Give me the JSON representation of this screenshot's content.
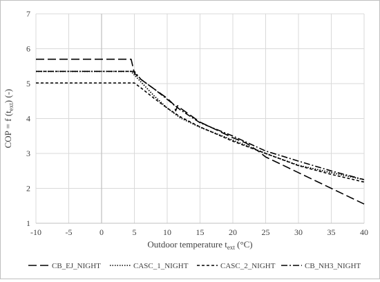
{
  "chart_data": {
    "type": "line",
    "title": "",
    "xlabel": "Outdoor temperature t",
    "xlabel_sub": "ext",
    "xlabel_unit": " (°C)",
    "ylabel": "COP = f (t",
    "ylabel_sub": "ext",
    "ylabel_unit": ") (-)",
    "xlim": [
      -10,
      40
    ],
    "ylim": [
      1,
      7
    ],
    "x_ticks": [
      -10,
      -5,
      0,
      5,
      10,
      15,
      20,
      25,
      30,
      35,
      40
    ],
    "y_ticks": [
      1,
      2,
      3,
      4,
      5,
      6,
      7
    ],
    "grid": true,
    "legend_position": "bottom",
    "series": [
      {
        "name": "CB_EJ_NIGHT",
        "color": "#000000",
        "dash": "long-dash",
        "points": [
          [
            -10,
            5.7
          ],
          [
            4,
            5.7
          ],
          [
            4.5,
            5.7
          ],
          [
            5,
            5.3
          ],
          [
            6,
            5.12
          ],
          [
            8,
            4.85
          ],
          [
            10,
            4.58
          ],
          [
            11,
            4.4
          ],
          [
            11.3,
            4.22
          ],
          [
            11.6,
            4.37
          ],
          [
            12,
            4.3
          ],
          [
            15,
            3.9
          ],
          [
            20,
            3.45
          ],
          [
            22,
            3.3
          ],
          [
            24,
            3.05
          ],
          [
            25,
            2.9
          ],
          [
            27,
            2.72
          ],
          [
            30,
            2.45
          ],
          [
            35,
            2.0
          ],
          [
            40,
            1.55
          ]
        ]
      },
      {
        "name": "CASC_1_NIGHT",
        "color": "#000000",
        "dash": "dotted",
        "points": [
          [
            -10,
            5.35
          ],
          [
            4.5,
            5.35
          ],
          [
            5,
            5.25
          ],
          [
            6,
            5.05
          ],
          [
            8,
            4.65
          ],
          [
            10,
            4.3
          ],
          [
            12,
            4.02
          ],
          [
            15,
            3.75
          ],
          [
            20,
            3.38
          ],
          [
            25,
            3.0
          ],
          [
            30,
            2.66
          ],
          [
            35,
            2.45
          ],
          [
            40,
            2.25
          ]
        ]
      },
      {
        "name": "CASC_2_NIGHT",
        "color": "#000000",
        "dash": "short-dash",
        "points": [
          [
            -10,
            5.02
          ],
          [
            5,
            5.02
          ],
          [
            6,
            4.88
          ],
          [
            8,
            4.58
          ],
          [
            10,
            4.3
          ],
          [
            12,
            4.05
          ],
          [
            15,
            3.76
          ],
          [
            20,
            3.35
          ],
          [
            25,
            3.0
          ],
          [
            30,
            2.65
          ],
          [
            35,
            2.4
          ],
          [
            40,
            2.18
          ]
        ]
      },
      {
        "name": "CB_NH3_NIGHT",
        "color": "#000000",
        "dash": "dash-dot",
        "points": [
          [
            -10,
            5.35
          ],
          [
            4.5,
            5.35
          ],
          [
            5,
            5.35
          ],
          [
            6,
            5.12
          ],
          [
            8,
            4.85
          ],
          [
            10,
            4.55
          ],
          [
            12,
            4.25
          ],
          [
            15,
            3.88
          ],
          [
            20,
            3.5
          ],
          [
            25,
            3.07
          ],
          [
            30,
            2.78
          ],
          [
            35,
            2.5
          ],
          [
            40,
            2.25
          ]
        ]
      }
    ]
  }
}
